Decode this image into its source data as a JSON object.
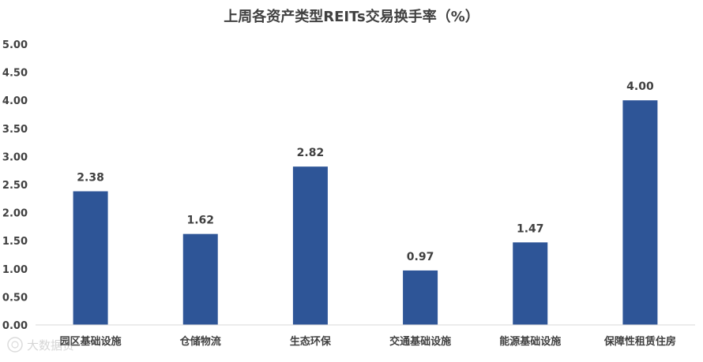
{
  "chart_data": {
    "type": "bar",
    "title": "上周各资产类型REITs交易换手率（%）",
    "xlabel": "",
    "ylabel": "",
    "categories": [
      "园区基础设施",
      "仓储物流",
      "生态环保",
      "交通基础设施",
      "能源基础设施",
      "保障性租赁住房"
    ],
    "values": [
      2.38,
      1.62,
      2.82,
      0.97,
      1.47,
      4.0
    ],
    "value_labels": [
      "2.38",
      "1.62",
      "2.82",
      "0.97",
      "1.47",
      "4.00"
    ],
    "ylim": [
      0,
      5
    ],
    "yticks": [
      "0.00",
      "0.50",
      "1.00",
      "1.50",
      "2.00",
      "2.50",
      "3.00",
      "3.50",
      "4.00",
      "4.50",
      "5.00"
    ],
    "grid": false,
    "legend": "none",
    "colors": {
      "bar": "#2E5597",
      "text": "#404040",
      "title": "#404040",
      "axis": "#D9D9D9"
    }
  },
  "watermark": {
    "text": "大数据贵"
  }
}
